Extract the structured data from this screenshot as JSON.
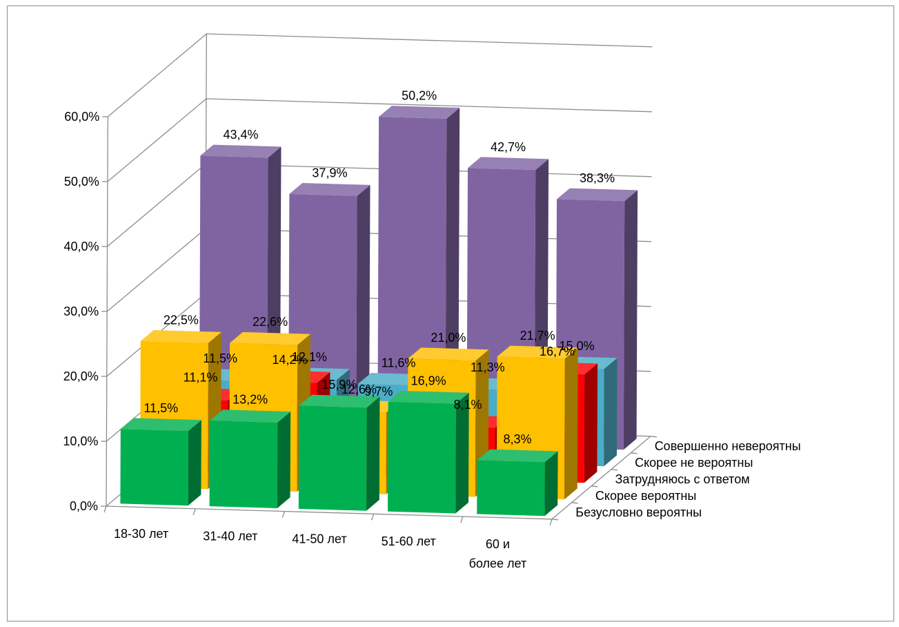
{
  "chart_data": {
    "type": "bar",
    "title": "",
    "xlabel": "",
    "ylabel": "",
    "ylim": [
      0,
      60
    ],
    "y_ticks": [
      "0,0%",
      "10,0%",
      "20,0%",
      "30,0%",
      "40,0%",
      "50,0%",
      "60,0%"
    ],
    "grid": true,
    "legend": "none",
    "categories": [
      [
        "18-30 лет"
      ],
      [
        "31-40 лет"
      ],
      [
        "41-50 лет"
      ],
      [
        "51-60 лет"
      ],
      [
        "60 и",
        "более лет"
      ]
    ],
    "series": [
      {
        "name": "Совершенно невероятны",
        "color": "#8064a2",
        "values": [
          43.4,
          37.9,
          50.2,
          42.7,
          38.3
        ],
        "labels": [
          "43,4%",
          "37,9%",
          "50,2%",
          "42,7%",
          "38,3%"
        ]
      },
      {
        "name": "Скорее не вероятны",
        "color": "#4bacc6",
        "values": [
          11.5,
          12.1,
          11.6,
          11.3,
          15.0
        ],
        "labels": [
          "11,5%",
          "12,1%",
          "11,6%",
          "11,3%",
          "15,0%"
        ]
      },
      {
        "name": "Затрудняюсь с ответом",
        "color": "#ff0000",
        "values": [
          11.1,
          14.2,
          9.7,
          8.1,
          16.7
        ],
        "labels": [
          "11,1%",
          "14,2%",
          "9,7%",
          "8,1%",
          "16,7%"
        ]
      },
      {
        "name": "Скорее вероятны",
        "color": "#ffc000",
        "values": [
          22.5,
          22.6,
          12.6,
          21.0,
          21.7
        ],
        "labels": [
          "22,5%",
          "22,6%",
          "12,6%",
          "21,0%",
          "21,7%"
        ]
      },
      {
        "name": "Безусловно вероятны",
        "color": "#00b050",
        "values": [
          11.5,
          13.2,
          15.9,
          16.9,
          8.3
        ],
        "labels": [
          "11,5%",
          "13,2%",
          "15,9%",
          "16,9%",
          "8,3%"
        ]
      }
    ]
  }
}
